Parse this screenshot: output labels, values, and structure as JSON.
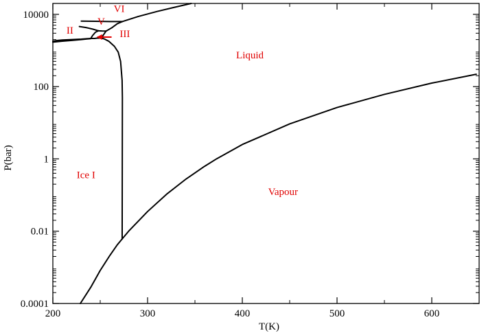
{
  "chart_data": {
    "type": "line",
    "title": "",
    "xlabel": "T(K)",
    "ylabel": "P(bar)",
    "xlim": [
      200,
      650
    ],
    "ylim": [
      0.0001,
      20000
    ],
    "y_scale": "log",
    "x_ticks": [
      {
        "value": 200,
        "label": "200"
      },
      {
        "value": 300,
        "label": "300"
      },
      {
        "value": 400,
        "label": "400"
      },
      {
        "value": 500,
        "label": "500"
      },
      {
        "value": 600,
        "label": "600"
      }
    ],
    "y_ticks": [
      {
        "value": 0.0001,
        "label": "0.0001"
      },
      {
        "value": 0.01,
        "label": "0.01"
      },
      {
        "value": 1,
        "label": "1"
      },
      {
        "value": 100,
        "label": "100"
      },
      {
        "value": 10000,
        "label": "10000"
      }
    ],
    "series": [
      {
        "key": "sublimation",
        "color": "#000000",
        "points": [
          [
            229,
            0.0001
          ],
          [
            240,
            0.00028
          ],
          [
            250,
            0.00082
          ],
          [
            260,
            0.0021
          ],
          [
            268,
            0.0042
          ],
          [
            273.16,
            0.0061
          ]
        ]
      },
      {
        "key": "vaporization",
        "color": "#000000",
        "points": [
          [
            273.16,
            0.0061
          ],
          [
            280,
            0.01
          ],
          [
            300,
            0.035
          ],
          [
            320,
            0.105
          ],
          [
            340,
            0.27
          ],
          [
            360,
            0.62
          ],
          [
            373,
            1.01
          ],
          [
            400,
            2.5
          ],
          [
            450,
            9.3
          ],
          [
            500,
            26.4
          ],
          [
            550,
            61
          ],
          [
            600,
            125
          ],
          [
            647,
            220
          ]
        ]
      },
      {
        "key": "melting-ice-i",
        "color": "#000000",
        "points": [
          [
            273.16,
            0.0061
          ],
          [
            273.3,
            1
          ],
          [
            273.4,
            50
          ],
          [
            273.1,
            150
          ],
          [
            271.5,
            500
          ],
          [
            269,
            900
          ],
          [
            265,
            1300
          ],
          [
            259,
            1800
          ],
          [
            254,
            2100
          ],
          [
            251,
            2200
          ]
        ]
      },
      {
        "key": "ice-i-iii-boundary",
        "color": "#000000",
        "points": [
          [
            251,
            2200
          ],
          [
            247,
            2200
          ],
          [
            244,
            2150
          ],
          [
            240,
            2150
          ]
        ]
      },
      {
        "key": "ice-i-ii-boundary",
        "color": "#000000",
        "points": [
          [
            200,
            1800
          ],
          [
            205,
            1900
          ],
          [
            210,
            1950
          ],
          [
            220,
            2000
          ],
          [
            230,
            2060
          ],
          [
            240,
            2150
          ]
        ]
      },
      {
        "key": "ice-i-ii-boundary-lower",
        "color": "#000000",
        "points": [
          [
            200,
            1700
          ],
          [
            210,
            1800
          ],
          [
            220,
            1900
          ],
          [
            230,
            2000
          ],
          [
            240,
            2130
          ]
        ]
      },
      {
        "key": "ice-ii-iii-boundary",
        "color": "#000000",
        "points": [
          [
            240,
            2150
          ],
          [
            242,
            2600
          ],
          [
            245,
            3200
          ],
          [
            248,
            3500
          ]
        ]
      },
      {
        "key": "ice-iii-v-boundary",
        "color": "#000000",
        "points": [
          [
            248,
            3500
          ],
          [
            252,
            3450
          ],
          [
            256.2,
            3440
          ]
        ]
      },
      {
        "key": "melting-ice-iii",
        "color": "#000000",
        "points": [
          [
            251,
            2200
          ],
          [
            253,
            2600
          ],
          [
            255,
            3100
          ],
          [
            256.2,
            3440
          ]
        ]
      },
      {
        "key": "ice-ii-v-boundary",
        "color": "#000000",
        "points": [
          [
            228,
            4600
          ],
          [
            235,
            4300
          ],
          [
            242,
            3900
          ],
          [
            248,
            3500
          ]
        ]
      },
      {
        "key": "melting-ice-v",
        "color": "#000000",
        "points": [
          [
            256.2,
            3440
          ],
          [
            262,
            4200
          ],
          [
            268,
            5500
          ],
          [
            273.3,
            6300
          ]
        ]
      },
      {
        "key": "ice-v-vi-boundary",
        "color": "#000000",
        "points": [
          [
            230,
            6500
          ],
          [
            245,
            6400
          ],
          [
            260,
            6300
          ],
          [
            273.3,
            6300
          ]
        ]
      },
      {
        "key": "melting-ice-vi",
        "color": "#000000",
        "points": [
          [
            273.3,
            6300
          ],
          [
            290,
            8700
          ],
          [
            310,
            12000
          ],
          [
            330,
            16000
          ],
          [
            346,
            20000
          ]
        ]
      }
    ],
    "annotations": [
      {
        "text": "VI",
        "x": 270,
        "y": 11500
      },
      {
        "text": "II",
        "x": 218,
        "y": 2900
      },
      {
        "text": "V",
        "x": 251,
        "y": 5100
      },
      {
        "text": "III",
        "x": 276,
        "y": 2350
      },
      {
        "text": "Liquid",
        "x": 408,
        "y": 600
      },
      {
        "text": "Ice I",
        "x": 235,
        "y": 0.29
      },
      {
        "text": "Vapour",
        "x": 443,
        "y": 0.1
      }
    ],
    "arrow": {
      "from": [
        262,
        2350
      ],
      "to": [
        247,
        2350
      ],
      "color": "#e00000"
    }
  }
}
